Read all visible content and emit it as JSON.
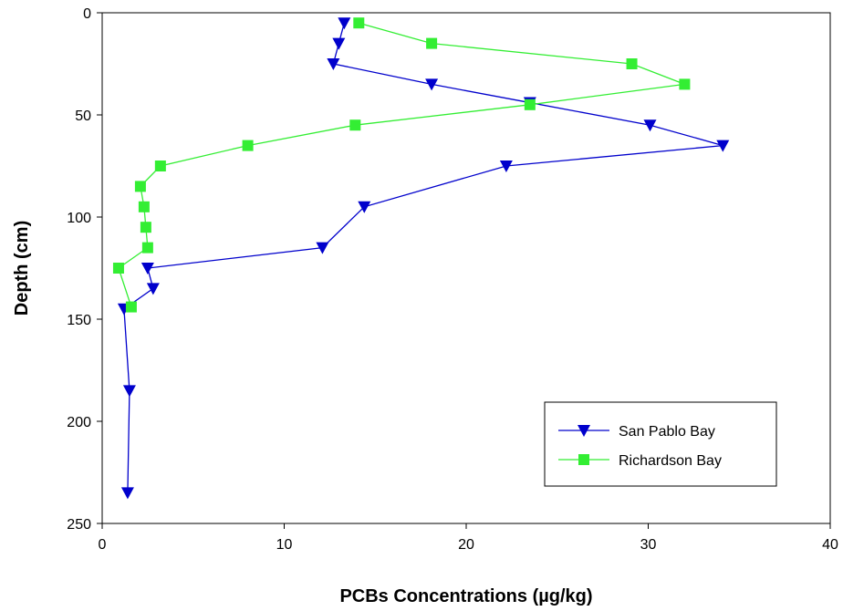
{
  "chart_data": {
    "type": "line",
    "xlabel": "PCBs Concentrations (µg/kg)",
    "ylabel": "Depth (cm)",
    "xlim": [
      0,
      40
    ],
    "ylim": [
      0,
      250
    ],
    "y_inverted": true,
    "x_ticks": [
      "0",
      "10",
      "20",
      "30",
      "40"
    ],
    "y_ticks": [
      "0",
      "50",
      "100",
      "150",
      "200",
      "250"
    ],
    "grid": false,
    "legend_position": "bottom-right",
    "series": [
      {
        "name": "San Pablo Bay",
        "color": "#0000cc",
        "marker": "triangle-down",
        "points": [
          {
            "x": 13.3,
            "y": 5
          },
          {
            "x": 13.0,
            "y": 15
          },
          {
            "x": 12.7,
            "y": 25
          },
          {
            "x": 18.1,
            "y": 35
          },
          {
            "x": 23.5,
            "y": 44
          },
          {
            "x": 30.1,
            "y": 55
          },
          {
            "x": 34.1,
            "y": 65
          },
          {
            "x": 22.2,
            "y": 75
          },
          {
            "x": 14.4,
            "y": 95
          },
          {
            "x": 12.1,
            "y": 115
          },
          {
            "x": 2.5,
            "y": 125
          },
          {
            "x": 2.8,
            "y": 135
          },
          {
            "x": 1.2,
            "y": 145
          },
          {
            "x": 1.5,
            "y": 185
          },
          {
            "x": 1.4,
            "y": 235
          }
        ]
      },
      {
        "name": "Richardson Bay",
        "color": "#33ee33",
        "marker": "square",
        "points": [
          {
            "x": 14.1,
            "y": 5
          },
          {
            "x": 18.1,
            "y": 15
          },
          {
            "x": 29.1,
            "y": 25
          },
          {
            "x": 32.0,
            "y": 35
          },
          {
            "x": 23.5,
            "y": 45
          },
          {
            "x": 13.9,
            "y": 55
          },
          {
            "x": 8.0,
            "y": 65
          },
          {
            "x": 3.2,
            "y": 75
          },
          {
            "x": 2.1,
            "y": 85
          },
          {
            "x": 2.3,
            "y": 95
          },
          {
            "x": 2.4,
            "y": 105
          },
          {
            "x": 2.5,
            "y": 115
          },
          {
            "x": 0.9,
            "y": 125
          },
          {
            "x": 1.6,
            "y": 144
          }
        ]
      }
    ]
  }
}
